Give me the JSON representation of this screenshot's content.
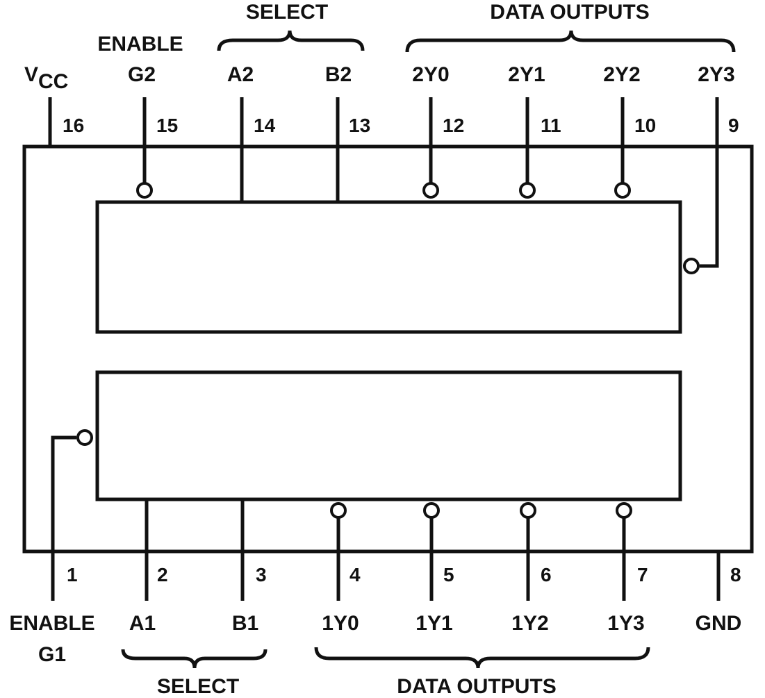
{
  "groups": {
    "top_enable": "ENABLE",
    "top_select": "SELECT",
    "top_outputs": "DATA OUTPUTS",
    "bottom_select": "SELECT",
    "bottom_outputs": "DATA OUTPUTS"
  },
  "top_pins": [
    {
      "num": "16",
      "label": "V",
      "sub": "CC"
    },
    {
      "num": "15",
      "label": "G2"
    },
    {
      "num": "14",
      "label": "A2"
    },
    {
      "num": "13",
      "label": "B2"
    },
    {
      "num": "12",
      "label": "2Y0"
    },
    {
      "num": "11",
      "label": "2Y1"
    },
    {
      "num": "10",
      "label": "2Y2"
    },
    {
      "num": "9",
      "label": "2Y3"
    }
  ],
  "bottom_pins": [
    {
      "num": "1",
      "label": "ENABLE",
      "label2": "G1"
    },
    {
      "num": "2",
      "label": "A1"
    },
    {
      "num": "3",
      "label": "B1"
    },
    {
      "num": "4",
      "label": "1Y0"
    },
    {
      "num": "5",
      "label": "1Y1"
    },
    {
      "num": "6",
      "label": "1Y2"
    },
    {
      "num": "7",
      "label": "1Y3"
    },
    {
      "num": "8",
      "label": "GND"
    }
  ]
}
